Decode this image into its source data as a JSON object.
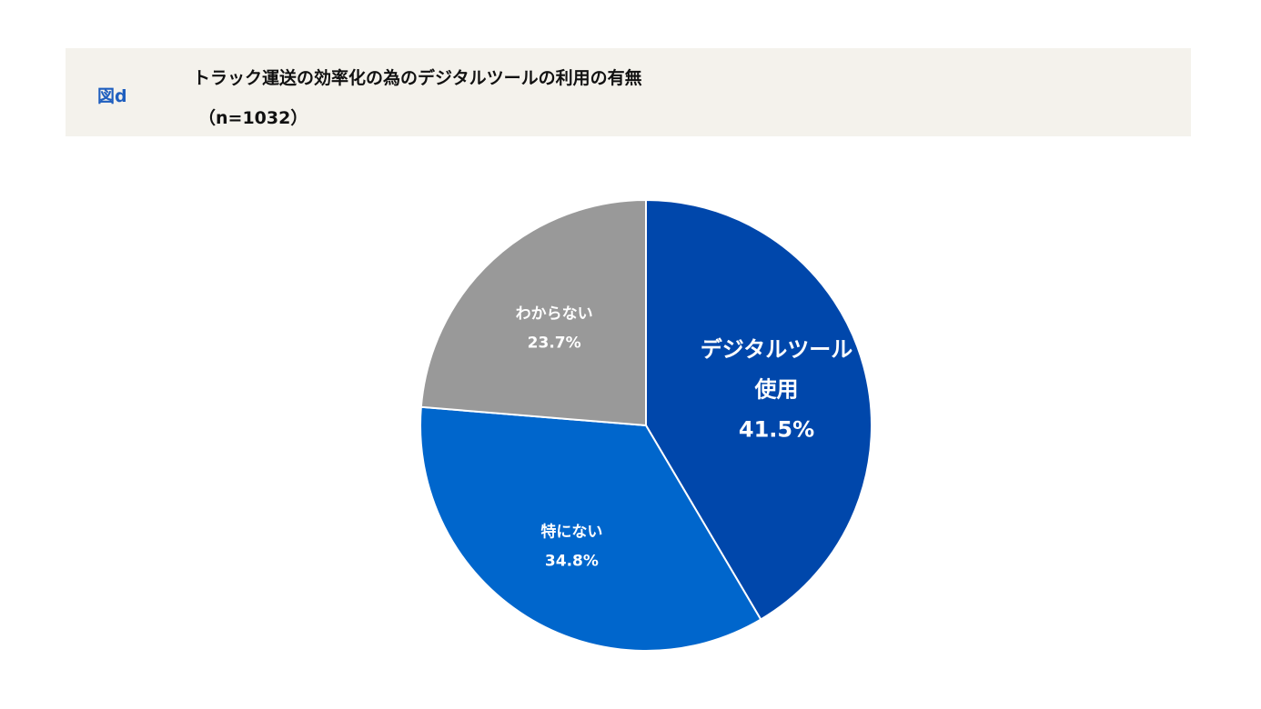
{
  "header": {
    "figure_label": "図d",
    "title": "トラック運送の効率化の為のデジタルツールの利用の有無",
    "subtitle": "（n=1032）"
  },
  "chart_data": {
    "type": "pie",
    "title": "トラック運送の効率化の為のデジタルツールの利用の有無",
    "subtitle": "（n=1032）",
    "start": "top, clockwise",
    "slices": [
      {
        "label_lines": [
          "デジタルツール",
          "使用"
        ],
        "value": 41.5,
        "value_label": "41.5%",
        "color": "#0047ab"
      },
      {
        "label_lines": [
          "特にない"
        ],
        "value": 34.8,
        "value_label": "34.8%",
        "color": "#0066cc"
      },
      {
        "label_lines": [
          "わからない"
        ],
        "value": 23.7,
        "value_label": "23.7%",
        "color": "#999999"
      }
    ]
  }
}
